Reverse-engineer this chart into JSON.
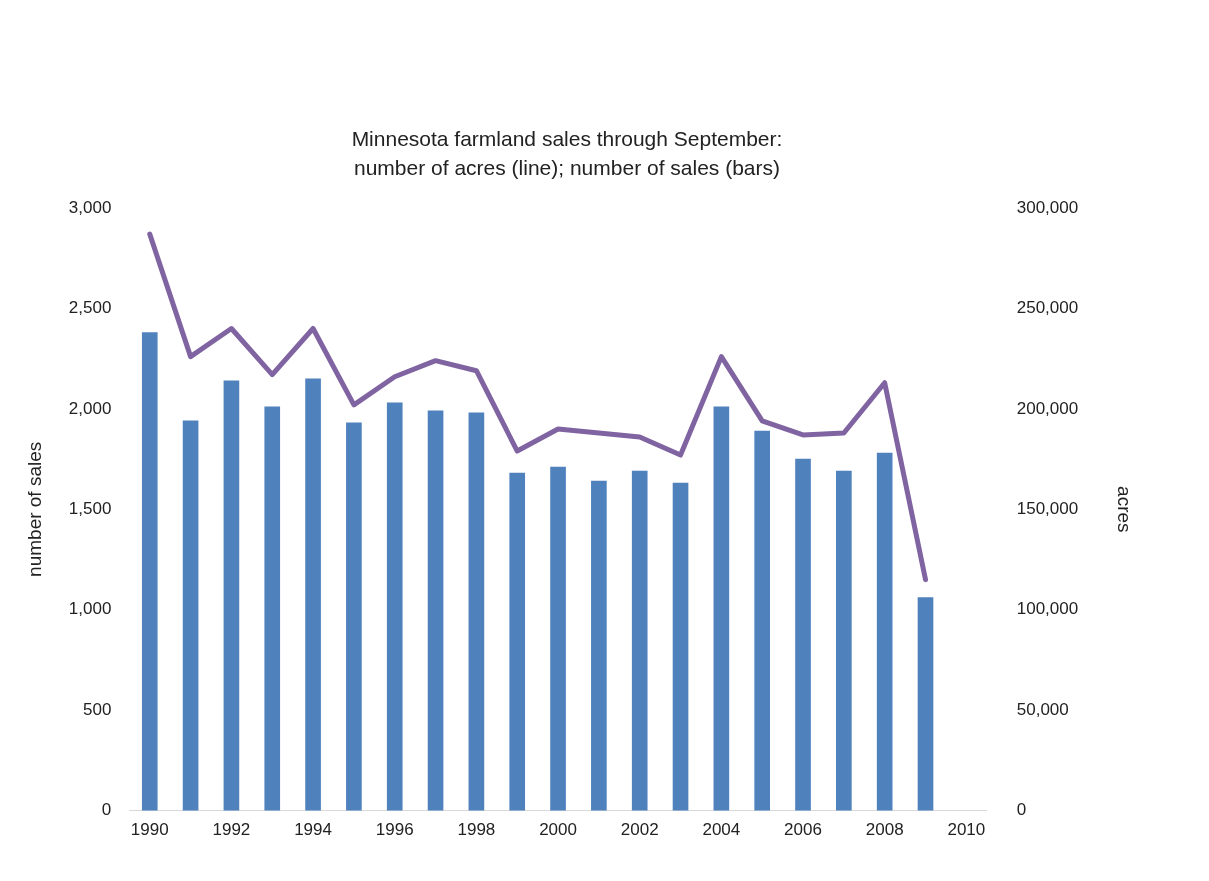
{
  "chart_data": {
    "type": "bar",
    "title": "Minnesota farmland sales through September: number of acres (line); number of sales (bars)",
    "ylabel": "number of sales",
    "y2label": "acres",
    "x": [
      1990,
      1991,
      1992,
      1993,
      1994,
      1995,
      1996,
      1997,
      1998,
      1999,
      2000,
      2001,
      2002,
      2003,
      2004,
      2005,
      2006,
      2007,
      2008,
      2009
    ],
    "series": [
      {
        "color": "#4f81bd",
        "values": [
          2380,
          1940,
          2140,
          2010,
          2150,
          1930,
          2030,
          1990,
          1980,
          1680,
          1710,
          1640,
          1690,
          1630,
          2010,
          1890,
          1750,
          1690,
          1780,
          1060
        ]
      },
      {
        "type": "line",
        "axis": "y2",
        "color": "#8064a2",
        "values": [
          287000,
          226000,
          240000,
          217000,
          240000,
          202000,
          216000,
          224000,
          219000,
          179000,
          190000,
          188000,
          186000,
          177000,
          226000,
          194000,
          187000,
          188000,
          213000,
          115000
        ]
      }
    ],
    "xlim": [
      1989.5,
      2010.5
    ],
    "xticks": [
      1990,
      1992,
      1994,
      1996,
      1998,
      2000,
      2002,
      2004,
      2006,
      2008,
      2010
    ],
    "ylim": [
      0,
      3000
    ],
    "yticks": [
      {
        "value": 0,
        "label": "0"
      },
      {
        "value": 500,
        "label": "500"
      },
      {
        "value": 1000,
        "label": "1,000"
      },
      {
        "value": 1500,
        "label": "1,500"
      },
      {
        "value": 2000,
        "label": "2,000"
      },
      {
        "value": 2500,
        "label": "2,500"
      },
      {
        "value": 3000,
        "label": "3,000"
      }
    ],
    "y2lim": [
      0,
      300000
    ],
    "y2ticks": [
      {
        "value": 0,
        "label": "0"
      },
      {
        "value": 50000,
        "label": "50,000"
      },
      {
        "value": 100000,
        "label": "100,000"
      },
      {
        "value": 150000,
        "label": "150,000"
      },
      {
        "value": 200000,
        "label": "200,000"
      },
      {
        "value": 250000,
        "label": "250,000"
      },
      {
        "value": 300000,
        "label": "300,000"
      }
    ],
    "grid": false,
    "legend": false
  }
}
